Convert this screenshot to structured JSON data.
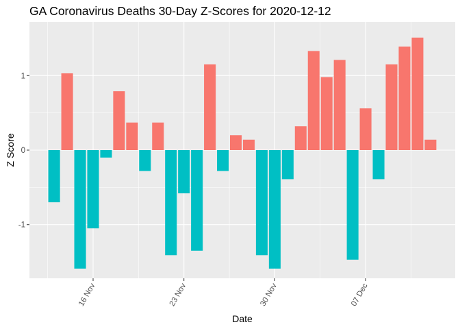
{
  "chart_data": {
    "type": "bar",
    "title": "GA Coronavirus Deaths 30-Day Z-Scores for 2020-12-12",
    "xlabel": "Date",
    "ylabel": "Z Score",
    "x_axis": {
      "type": "date",
      "ticks": [
        {
          "date": "2020-11-16",
          "label": "16 Nov"
        },
        {
          "date": "2020-11-23",
          "label": "23 Nov"
        },
        {
          "date": "2020-11-30",
          "label": "30 Nov"
        },
        {
          "date": "2020-12-07",
          "label": "07 Dec"
        }
      ],
      "label_rotation": "60 degrees"
    },
    "y_axis": {
      "ylim": [
        -1.72,
        1.72
      ],
      "ticks": [
        {
          "value": -1,
          "label": "-1"
        },
        {
          "value": 0,
          "label": "0"
        },
        {
          "value": 1,
          "label": "1"
        }
      ]
    },
    "grid": true,
    "legend": "none",
    "colors": {
      "positive": "#F8766D",
      "negative": "#00BFC4",
      "panel": "#EBEBEB",
      "grid": "#FFFFFF"
    },
    "x": [
      "2020-11-13",
      "2020-11-14",
      "2020-11-15",
      "2020-11-16",
      "2020-11-17",
      "2020-11-18",
      "2020-11-19",
      "2020-11-20",
      "2020-11-21",
      "2020-11-22",
      "2020-11-23",
      "2020-11-24",
      "2020-11-25",
      "2020-11-26",
      "2020-11-27",
      "2020-11-28",
      "2020-11-29",
      "2020-11-30",
      "2020-12-01",
      "2020-12-02",
      "2020-12-03",
      "2020-12-04",
      "2020-12-05",
      "2020-12-06",
      "2020-12-07",
      "2020-12-08",
      "2020-12-09",
      "2020-12-10",
      "2020-12-11",
      "2020-12-12"
    ],
    "values": [
      -0.7,
      1.03,
      -1.59,
      -1.05,
      -0.1,
      0.79,
      0.37,
      -0.28,
      0.37,
      -1.41,
      -0.58,
      -1.35,
      1.15,
      -0.28,
      0.2,
      0.14,
      -1.41,
      -1.59,
      -0.39,
      0.32,
      1.33,
      0.98,
      1.21,
      -1.47,
      0.56,
      -0.39,
      1.15,
      1.39,
      1.51,
      0.14
    ]
  }
}
